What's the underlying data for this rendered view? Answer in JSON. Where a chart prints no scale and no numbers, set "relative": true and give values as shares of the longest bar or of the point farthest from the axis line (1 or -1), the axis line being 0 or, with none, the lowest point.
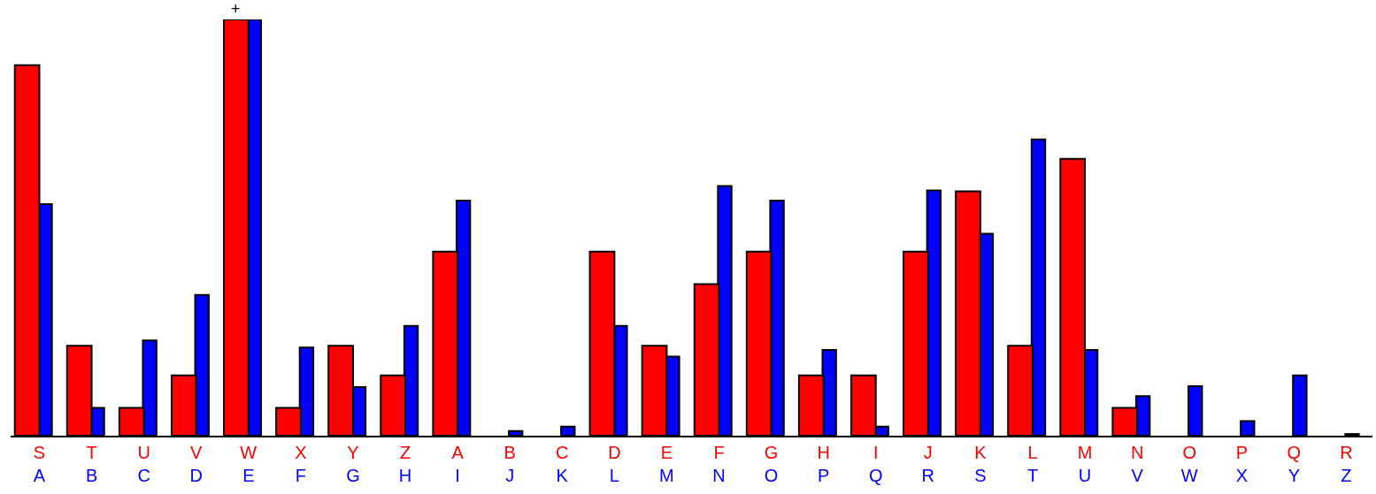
{
  "chart_data": {
    "type": "bar",
    "relative": true,
    "categories": [
      "S\nA",
      "T\nB",
      "U\nC",
      "V\nD",
      "W\nE",
      "X\nF",
      "Y\nG",
      "Z\nH",
      "A\nI",
      "B\nJ",
      "C\nK",
      "D\nL",
      "E\nM",
      "F\nN",
      "G\nO",
      "H\nP",
      "I\nQ",
      "J\nR",
      "K\nS",
      "L\nT",
      "M\nU",
      "N\nV",
      "O\nW",
      "P\nX",
      "Q\nY",
      "R\nZ"
    ],
    "series": [
      {
        "color": "#ff0000",
        "values": [
          0.89,
          0.216,
          0.067,
          0.145,
          1.0,
          0.067,
          0.216,
          0.145,
          0.442,
          0,
          0,
          0.442,
          0.216,
          0.364,
          0.442,
          0.145,
          0.145,
          0.442,
          0.587,
          0.216,
          0.665,
          0.067,
          0,
          0,
          0,
          0
        ]
      },
      {
        "color": "#0000ff",
        "values": [
          0.556,
          0.067,
          0.229,
          0.338,
          1.0,
          0.212,
          0.117,
          0.264,
          0.565,
          0.011,
          0.022,
          0.264,
          0.19,
          0.6,
          0.565,
          0.206,
          0.022,
          0.589,
          0.485,
          0.712,
          0.206,
          0.095,
          0.119,
          0.035,
          0.145,
          0.004
        ]
      }
    ],
    "annotations": [
      {
        "text": "+",
        "x": "W\nE",
        "y": 1.0
      }
    ]
  }
}
